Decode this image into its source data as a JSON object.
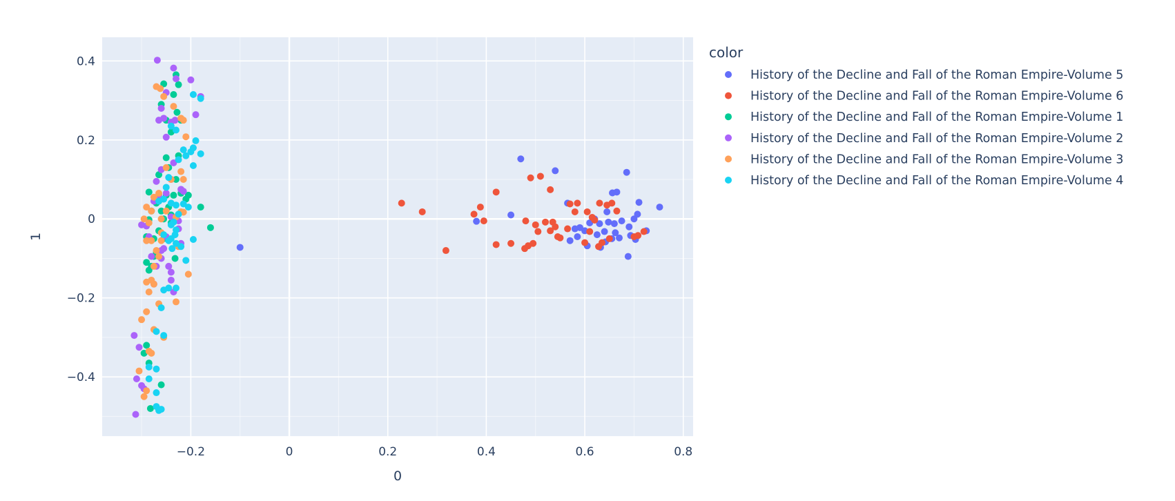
{
  "chart_data": {
    "type": "scatter",
    "xlabel": "0",
    "ylabel": "1",
    "xlim": [
      -0.38,
      0.82
    ],
    "ylim": [
      -0.55,
      0.46
    ],
    "xticks": [
      -0.2,
      0,
      0.2,
      0.4,
      0.6,
      0.8
    ],
    "xtick_labels": [
      "−0.2",
      "0",
      "0.2",
      "0.4",
      "0.6",
      "0.8"
    ],
    "yticks": [
      -0.4,
      -0.2,
      0,
      0.2,
      0.4
    ],
    "ytick_labels": [
      "−0.4",
      "−0.2",
      "0",
      "0.2",
      "0.4"
    ],
    "grid": true,
    "legend": {
      "title": "color",
      "position": "right"
    },
    "series": [
      {
        "name": "History of the Decline and Fall of the Roman Empire-Volume 5",
        "color": "#636efa",
        "points": [
          [
            -0.1,
            -0.072
          ],
          [
            0.38,
            -0.006
          ],
          [
            0.45,
            0.01
          ],
          [
            0.47,
            0.152
          ],
          [
            0.54,
            0.122
          ],
          [
            0.565,
            0.04
          ],
          [
            0.57,
            -0.055
          ],
          [
            0.58,
            -0.025
          ],
          [
            0.585,
            -0.045
          ],
          [
            0.59,
            -0.022
          ],
          [
            0.6,
            -0.03
          ],
          [
            0.605,
            -0.068
          ],
          [
            0.61,
            -0.01
          ],
          [
            0.62,
            0.0
          ],
          [
            0.625,
            -0.04
          ],
          [
            0.63,
            -0.012
          ],
          [
            0.632,
            -0.072
          ],
          [
            0.64,
            -0.032
          ],
          [
            0.642,
            -0.058
          ],
          [
            0.645,
            0.018
          ],
          [
            0.648,
            -0.008
          ],
          [
            0.655,
            -0.05
          ],
          [
            0.656,
            0.066
          ],
          [
            0.66,
            -0.012
          ],
          [
            0.662,
            -0.035
          ],
          [
            0.665,
            0.068
          ],
          [
            0.67,
            -0.048
          ],
          [
            0.675,
            -0.005
          ],
          [
            0.685,
            0.118
          ],
          [
            0.688,
            -0.095
          ],
          [
            0.69,
            -0.02
          ],
          [
            0.693,
            -0.042
          ],
          [
            0.7,
            0.0
          ],
          [
            0.703,
            -0.052
          ],
          [
            0.707,
            0.012
          ],
          [
            0.71,
            0.042
          ],
          [
            0.725,
            -0.03
          ],
          [
            0.752,
            0.03
          ]
        ]
      },
      {
        "name": "History of the Decline and Fall of the Roman Empire-Volume 6",
        "color": "#EF553B",
        "points": [
          [
            0.228,
            0.04
          ],
          [
            0.27,
            0.018
          ],
          [
            0.318,
            -0.08
          ],
          [
            0.375,
            0.012
          ],
          [
            0.388,
            0.03
          ],
          [
            0.395,
            -0.005
          ],
          [
            0.42,
            0.068
          ],
          [
            0.42,
            -0.065
          ],
          [
            0.45,
            -0.062
          ],
          [
            0.478,
            -0.075
          ],
          [
            0.48,
            -0.005
          ],
          [
            0.485,
            -0.068
          ],
          [
            0.49,
            0.104
          ],
          [
            0.495,
            -0.062
          ],
          [
            0.5,
            -0.015
          ],
          [
            0.505,
            -0.032
          ],
          [
            0.51,
            0.108
          ],
          [
            0.52,
            -0.008
          ],
          [
            0.53,
            -0.03
          ],
          [
            0.53,
            0.074
          ],
          [
            0.535,
            -0.008
          ],
          [
            0.54,
            -0.02
          ],
          [
            0.545,
            -0.045
          ],
          [
            0.55,
            -0.048
          ],
          [
            0.565,
            -0.025
          ],
          [
            0.57,
            0.038
          ],
          [
            0.58,
            0.018
          ],
          [
            0.585,
            0.04
          ],
          [
            0.6,
            -0.06
          ],
          [
            0.605,
            0.018
          ],
          [
            0.61,
            -0.032
          ],
          [
            0.615,
            0.004
          ],
          [
            0.62,
            -0.003
          ],
          [
            0.628,
            -0.07
          ],
          [
            0.63,
            0.04
          ],
          [
            0.635,
            -0.06
          ],
          [
            0.645,
            0.035
          ],
          [
            0.65,
            -0.05
          ],
          [
            0.655,
            0.04
          ],
          [
            0.665,
            0.02
          ],
          [
            0.7,
            -0.045
          ],
          [
            0.708,
            -0.042
          ],
          [
            0.72,
            -0.032
          ]
        ]
      },
      {
        "name": "History of the Decline and Fall of the Roman Empire-Volume 1",
        "color": "#00cc96",
        "points": [
          [
            -0.285,
            0.068
          ],
          [
            -0.29,
            -0.045
          ],
          [
            -0.285,
            -0.002
          ],
          [
            -0.28,
            -0.12
          ],
          [
            -0.275,
            -0.095
          ],
          [
            -0.27,
            0.04
          ],
          [
            -0.265,
            0.112
          ],
          [
            -0.26,
            0.02
          ],
          [
            -0.255,
            -0.05
          ],
          [
            -0.25,
            0.155
          ],
          [
            -0.245,
            0.03
          ],
          [
            -0.24,
            0.01
          ],
          [
            -0.235,
            0.315
          ],
          [
            -0.23,
            0.365
          ],
          [
            -0.228,
            0.27
          ],
          [
            -0.225,
            0.34
          ],
          [
            -0.22,
            0.25
          ],
          [
            -0.235,
            0.06
          ],
          [
            -0.24,
            -0.01
          ],
          [
            -0.232,
            -0.1
          ],
          [
            -0.245,
            0.13
          ],
          [
            -0.25,
            0.06
          ],
          [
            -0.255,
            0.342
          ],
          [
            -0.26,
            0.29
          ],
          [
            -0.265,
            -0.03
          ],
          [
            -0.27,
            -0.085
          ],
          [
            -0.275,
            -0.05
          ],
          [
            -0.28,
            0.02
          ],
          [
            -0.29,
            -0.11
          ],
          [
            -0.285,
            -0.13
          ],
          [
            -0.29,
            -0.32
          ],
          [
            -0.295,
            -0.34
          ],
          [
            -0.285,
            -0.365
          ],
          [
            -0.282,
            -0.48
          ],
          [
            -0.26,
            -0.42
          ],
          [
            -0.265,
            0.045
          ],
          [
            -0.255,
            0.0
          ],
          [
            -0.23,
            0.1
          ],
          [
            -0.22,
            0.065
          ],
          [
            -0.21,
            0.05
          ],
          [
            -0.205,
            0.06
          ],
          [
            -0.18,
            0.03
          ],
          [
            -0.16,
            -0.022
          ],
          [
            -0.225,
            0.16
          ],
          [
            -0.24,
            0.22
          ],
          [
            -0.25,
            0.25
          ]
        ]
      },
      {
        "name": "History of the Decline and Fall of the Roman Empire-Volume 2",
        "color": "#ab63fa",
        "points": [
          [
            -0.268,
            0.402
          ],
          [
            -0.235,
            0.382
          ],
          [
            -0.23,
            0.355
          ],
          [
            -0.2,
            0.352
          ],
          [
            -0.18,
            0.31
          ],
          [
            -0.19,
            0.264
          ],
          [
            -0.25,
            0.32
          ],
          [
            -0.26,
            0.28
          ],
          [
            -0.265,
            0.25
          ],
          [
            -0.255,
            0.255
          ],
          [
            -0.24,
            0.245
          ],
          [
            -0.232,
            0.25
          ],
          [
            -0.25,
            0.207
          ],
          [
            -0.235,
            0.142
          ],
          [
            -0.26,
            0.125
          ],
          [
            -0.24,
            0.1
          ],
          [
            -0.27,
            0.095
          ],
          [
            -0.275,
            0.045
          ],
          [
            -0.265,
            0.06
          ],
          [
            -0.25,
            0.065
          ],
          [
            -0.22,
            0.075
          ],
          [
            -0.215,
            0.07
          ],
          [
            -0.3,
            -0.015
          ],
          [
            -0.285,
            -0.045
          ],
          [
            -0.28,
            -0.095
          ],
          [
            -0.26,
            -0.08
          ],
          [
            -0.255,
            -0.075
          ],
          [
            -0.245,
            -0.12
          ],
          [
            -0.24,
            -0.135
          ],
          [
            -0.24,
            -0.155
          ],
          [
            -0.235,
            -0.185
          ],
          [
            -0.225,
            -0.025
          ],
          [
            -0.22,
            -0.062
          ],
          [
            -0.225,
            -0.005
          ],
          [
            -0.24,
            0.005
          ],
          [
            -0.29,
            -0.018
          ],
          [
            -0.315,
            -0.295
          ],
          [
            -0.305,
            -0.325
          ],
          [
            -0.31,
            -0.405
          ],
          [
            -0.3,
            -0.422
          ],
          [
            -0.295,
            -0.43
          ],
          [
            -0.312,
            -0.495
          ],
          [
            -0.26,
            -0.1
          ],
          [
            -0.27,
            -0.12
          ],
          [
            -0.275,
            -0.165
          ],
          [
            -0.25,
            -0.045
          ]
        ]
      },
      {
        "name": "History of the Decline and Fall of the Roman Empire-Volume 3",
        "color": "#FFA15A",
        "points": [
          [
            -0.27,
            0.335
          ],
          [
            -0.262,
            0.33
          ],
          [
            -0.255,
            0.31
          ],
          [
            -0.235,
            0.285
          ],
          [
            -0.22,
            0.255
          ],
          [
            -0.215,
            0.25
          ],
          [
            -0.21,
            0.208
          ],
          [
            -0.22,
            0.12
          ],
          [
            -0.215,
            0.1
          ],
          [
            -0.24,
            0.1
          ],
          [
            -0.25,
            0.13
          ],
          [
            -0.265,
            0.065
          ],
          [
            -0.275,
            0.055
          ],
          [
            -0.28,
            0.02
          ],
          [
            -0.29,
            0.03
          ],
          [
            -0.295,
            0.0
          ],
          [
            -0.285,
            -0.01
          ],
          [
            -0.26,
            0.0
          ],
          [
            -0.25,
            0.02
          ],
          [
            -0.22,
            0.018
          ],
          [
            -0.215,
            0.017
          ],
          [
            -0.23,
            0.005
          ],
          [
            -0.26,
            -0.035
          ],
          [
            -0.28,
            -0.055
          ],
          [
            -0.29,
            -0.055
          ],
          [
            -0.27,
            -0.08
          ],
          [
            -0.265,
            -0.095
          ],
          [
            -0.275,
            -0.12
          ],
          [
            -0.28,
            -0.155
          ],
          [
            -0.29,
            -0.16
          ],
          [
            -0.275,
            -0.165
          ],
          [
            -0.285,
            -0.185
          ],
          [
            -0.265,
            -0.215
          ],
          [
            -0.23,
            -0.21
          ],
          [
            -0.205,
            -0.14
          ],
          [
            -0.225,
            -0.07
          ],
          [
            -0.29,
            -0.235
          ],
          [
            -0.3,
            -0.255
          ],
          [
            -0.275,
            -0.28
          ],
          [
            -0.255,
            -0.3
          ],
          [
            -0.285,
            -0.335
          ],
          [
            -0.305,
            -0.385
          ],
          [
            -0.29,
            -0.435
          ],
          [
            -0.295,
            -0.45
          ],
          [
            -0.28,
            -0.34
          ],
          [
            -0.26,
            -0.055
          ]
        ]
      },
      {
        "name": "History of the Decline and Fall of the Roman Empire-Volume 4",
        "color": "#19d3f3",
        "points": [
          [
            -0.195,
            0.315
          ],
          [
            -0.18,
            0.305
          ],
          [
            -0.19,
            0.198
          ],
          [
            -0.2,
            0.17
          ],
          [
            -0.195,
            0.18
          ],
          [
            -0.18,
            0.165
          ],
          [
            -0.195,
            0.135
          ],
          [
            -0.21,
            0.16
          ],
          [
            -0.215,
            0.175
          ],
          [
            -0.225,
            0.15
          ],
          [
            -0.23,
            0.225
          ],
          [
            -0.24,
            0.235
          ],
          [
            -0.245,
            0.105
          ],
          [
            -0.25,
            0.08
          ],
          [
            -0.255,
            0.05
          ],
          [
            -0.24,
            0.04
          ],
          [
            -0.23,
            0.035
          ],
          [
            -0.215,
            0.038
          ],
          [
            -0.205,
            0.03
          ],
          [
            -0.225,
            0.012
          ],
          [
            -0.235,
            -0.008
          ],
          [
            -0.24,
            -0.015
          ],
          [
            -0.23,
            -0.028
          ],
          [
            -0.232,
            -0.04
          ],
          [
            -0.24,
            -0.05
          ],
          [
            -0.245,
            -0.055
          ],
          [
            -0.23,
            -0.062
          ],
          [
            -0.238,
            -0.075
          ],
          [
            -0.195,
            -0.052
          ],
          [
            -0.21,
            -0.105
          ],
          [
            -0.22,
            -0.07
          ],
          [
            -0.245,
            -0.175
          ],
          [
            -0.23,
            -0.175
          ],
          [
            -0.255,
            -0.18
          ],
          [
            -0.26,
            -0.225
          ],
          [
            -0.27,
            -0.285
          ],
          [
            -0.255,
            -0.295
          ],
          [
            -0.27,
            -0.38
          ],
          [
            -0.285,
            -0.375
          ],
          [
            -0.285,
            -0.405
          ],
          [
            -0.27,
            -0.44
          ],
          [
            -0.27,
            -0.475
          ],
          [
            -0.265,
            -0.485
          ],
          [
            -0.26,
            -0.482
          ],
          [
            -0.255,
            -0.04
          ],
          [
            -0.265,
            0.045
          ]
        ]
      }
    ]
  }
}
